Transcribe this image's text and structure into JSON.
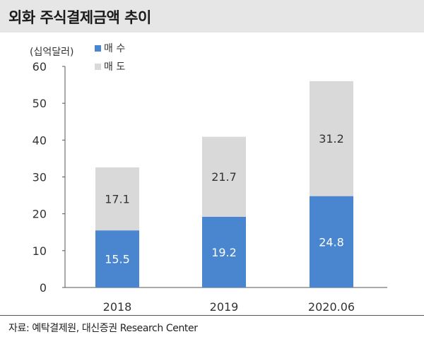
{
  "header": {
    "title": "외화 주식결제금액 추이"
  },
  "footer": {
    "source": "자료: 예탁결제원, 대신증권 Research Center"
  },
  "colors": {
    "buy": "#4a86cf",
    "sell": "#d9d9d9",
    "axis": "#555555",
    "title_bg": "#e6e6e6"
  },
  "chart_data": {
    "type": "bar",
    "stacked": true,
    "unit_label": "(십억달러)",
    "categories": [
      "2018",
      "2019",
      "2020.06"
    ],
    "series": [
      {
        "name": "매 수",
        "values": [
          15.5,
          19.2,
          24.8
        ],
        "color": "#4a86cf",
        "label_color": "#ffffff"
      },
      {
        "name": "매 도",
        "values": [
          17.1,
          21.7,
          31.2
        ],
        "color": "#d9d9d9",
        "label_color": "#333333"
      }
    ],
    "ylim": [
      0,
      60
    ],
    "yticks": [
      0,
      10,
      20,
      30,
      40,
      50,
      60
    ],
    "legend_position": "top-left",
    "grid": false
  }
}
